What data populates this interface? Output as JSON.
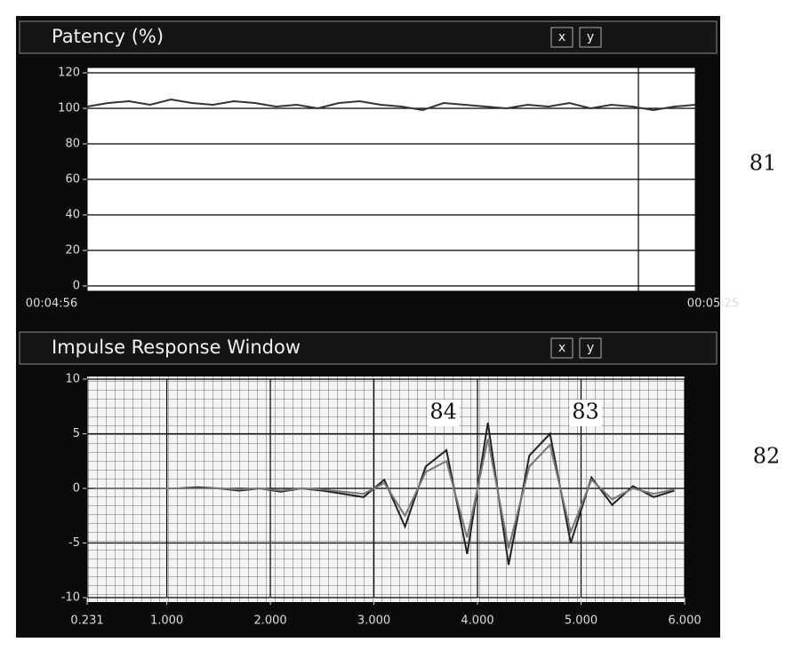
{
  "chart_data": [
    {
      "type": "line",
      "title": "Patency (%)",
      "toolbar_buttons": [
        "x",
        "y"
      ],
      "figure_label": "81",
      "categories": [
        "00:04:56",
        null,
        null,
        null,
        null,
        null,
        null,
        null,
        null,
        null,
        null,
        null,
        null,
        null,
        null,
        null,
        null,
        null,
        null,
        null,
        null,
        null,
        null,
        null,
        null,
        null,
        null,
        null,
        null,
        "00:05:25"
      ],
      "series": [
        {
          "color": "#333333",
          "values": [
            101,
            103,
            104,
            102,
            105,
            103,
            102,
            104,
            103,
            101,
            102,
            100,
            103,
            104,
            102,
            101,
            99,
            103,
            102,
            101,
            100,
            102,
            101,
            103,
            100,
            102,
            101,
            99,
            101,
            102
          ]
        }
      ],
      "ylim": [
        0,
        120
      ],
      "yticks": [
        0,
        20,
        40,
        60,
        80,
        100,
        120
      ],
      "grid": true
    },
    {
      "type": "line",
      "title": "Impulse Response Window",
      "toolbar_buttons": [
        "x",
        "y"
      ],
      "figure_label": "82",
      "x": [
        0.3,
        0.5,
        0.7,
        0.9,
        1.1,
        1.3,
        1.5,
        1.7,
        1.9,
        2.1,
        2.3,
        2.5,
        2.7,
        2.9,
        3.1,
        3.3,
        3.5,
        3.7,
        3.9,
        4.1,
        4.3,
        4.5,
        4.7,
        4.9,
        5.1,
        5.3,
        5.5,
        5.7,
        5.9
      ],
      "series": [
        {
          "name": "84",
          "color": "#222222",
          "values": [
            0,
            0,
            0,
            0,
            0,
            0.1,
            0,
            -0.2,
            0,
            -0.3,
            0,
            -0.2,
            -0.5,
            -0.8,
            0.8,
            -3.5,
            2,
            3.5,
            -6,
            6,
            -7,
            3,
            5,
            -5,
            1,
            -1.5,
            0.2,
            -0.8,
            -0.2
          ]
        },
        {
          "name": "83",
          "color": "#777777",
          "values": [
            0,
            0,
            0,
            0,
            0,
            0,
            0,
            -0.1,
            0,
            -0.2,
            0,
            -0.1,
            -0.3,
            -0.5,
            0.5,
            -2.5,
            1.5,
            2.5,
            -4.5,
            4.5,
            -5.5,
            2,
            4,
            -4,
            0.8,
            -1,
            0,
            -0.5,
            -0.1
          ]
        }
      ],
      "xlim": [
        0.231,
        6.0
      ],
      "xticks": [
        0.231,
        {
          "value": 1,
          "label": "1.000"
        },
        {
          "value": 2,
          "label": "2.000"
        },
        {
          "value": 3,
          "label": "3.000"
        },
        {
          "value": 4,
          "label": "4.000"
        },
        {
          "value": 5,
          "label": "5.000"
        },
        {
          "value": 6,
          "label": "6.000"
        }
      ],
      "ylim": [
        -10,
        10
      ],
      "yticks": [
        -10,
        -5,
        0,
        5,
        10
      ],
      "grid": true
    }
  ]
}
